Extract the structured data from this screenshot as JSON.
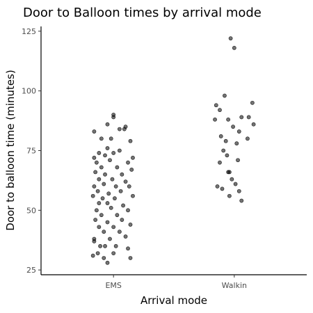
{
  "chart_data": {
    "type": "scatter",
    "title": "Door to Balloon times by arrival mode",
    "xlabel": "Arrival mode",
    "ylabel": "Door to balloon time (minutes)",
    "categories": [
      "EMS",
      "Walkin"
    ],
    "ylim": [
      23,
      127
    ],
    "yticks": [
      25,
      50,
      75,
      100,
      125
    ],
    "grid": false,
    "legend": "none",
    "point_color": "#000000",
    "series": [
      {
        "category": "EMS",
        "points": [
          {
            "x": 1.0,
            "y": 89
          },
          {
            "x": 1.0,
            "y": 90
          },
          {
            "x": 0.95,
            "y": 86
          },
          {
            "x": 1.1,
            "y": 85
          },
          {
            "x": 0.84,
            "y": 83
          },
          {
            "x": 1.05,
            "y": 84
          },
          {
            "x": 1.09,
            "y": 84
          },
          {
            "x": 0.9,
            "y": 80
          },
          {
            "x": 0.98,
            "y": 80
          },
          {
            "x": 1.14,
            "y": 79
          },
          {
            "x": 0.95,
            "y": 76
          },
          {
            "x": 0.88,
            "y": 74
          },
          {
            "x": 1.0,
            "y": 74
          },
          {
            "x": 1.05,
            "y": 75
          },
          {
            "x": 0.84,
            "y": 72
          },
          {
            "x": 0.93,
            "y": 73
          },
          {
            "x": 1.16,
            "y": 72
          },
          {
            "x": 0.86,
            "y": 70
          },
          {
            "x": 0.97,
            "y": 71
          },
          {
            "x": 1.12,
            "y": 70
          },
          {
            "x": 0.9,
            "y": 68
          },
          {
            "x": 1.03,
            "y": 68
          },
          {
            "x": 1.15,
            "y": 67
          },
          {
            "x": 0.85,
            "y": 66
          },
          {
            "x": 0.93,
            "y": 65
          },
          {
            "x": 1.07,
            "y": 65
          },
          {
            "x": 0.88,
            "y": 63
          },
          {
            "x": 0.99,
            "y": 63
          },
          {
            "x": 1.1,
            "y": 62
          },
          {
            "x": 0.84,
            "y": 60
          },
          {
            "x": 0.92,
            "y": 61
          },
          {
            "x": 1.02,
            "y": 60
          },
          {
            "x": 1.13,
            "y": 60
          },
          {
            "x": 0.87,
            "y": 58
          },
          {
            "x": 0.96,
            "y": 57
          },
          {
            "x": 1.06,
            "y": 58
          },
          {
            "x": 0.83,
            "y": 56
          },
          {
            "x": 0.91,
            "y": 55
          },
          {
            "x": 1.01,
            "y": 55
          },
          {
            "x": 1.16,
            "y": 56
          },
          {
            "x": 0.88,
            "y": 53
          },
          {
            "x": 0.95,
            "y": 53
          },
          {
            "x": 1.08,
            "y": 52
          },
          {
            "x": 0.86,
            "y": 50
          },
          {
            "x": 0.98,
            "y": 51
          },
          {
            "x": 1.12,
            "y": 50
          },
          {
            "x": 0.9,
            "y": 48
          },
          {
            "x": 1.03,
            "y": 48
          },
          {
            "x": 0.85,
            "y": 46
          },
          {
            "x": 0.95,
            "y": 45
          },
          {
            "x": 1.07,
            "y": 46
          },
          {
            "x": 0.88,
            "y": 43
          },
          {
            "x": 1.0,
            "y": 43
          },
          {
            "x": 1.14,
            "y": 44
          },
          {
            "x": 0.92,
            "y": 41
          },
          {
            "x": 1.05,
            "y": 41
          },
          {
            "x": 0.84,
            "y": 38
          },
          {
            "x": 0.97,
            "y": 38
          },
          {
            "x": 1.1,
            "y": 39
          },
          {
            "x": 0.84,
            "y": 37
          },
          {
            "x": 0.89,
            "y": 35
          },
          {
            "x": 0.93,
            "y": 35
          },
          {
            "x": 1.02,
            "y": 35
          },
          {
            "x": 1.12,
            "y": 34
          },
          {
            "x": 0.87,
            "y": 32
          },
          {
            "x": 1.0,
            "y": 32
          },
          {
            "x": 0.83,
            "y": 31
          },
          {
            "x": 0.92,
            "y": 30
          },
          {
            "x": 1.14,
            "y": 30
          },
          {
            "x": 0.95,
            "y": 28
          }
        ]
      },
      {
        "category": "Walkin",
        "points": [
          {
            "x": 1.97,
            "y": 122
          },
          {
            "x": 2.0,
            "y": 118
          },
          {
            "x": 1.92,
            "y": 98
          },
          {
            "x": 2.15,
            "y": 95
          },
          {
            "x": 1.85,
            "y": 94
          },
          {
            "x": 1.88,
            "y": 92
          },
          {
            "x": 2.06,
            "y": 89
          },
          {
            "x": 2.12,
            "y": 89
          },
          {
            "x": 1.84,
            "y": 88
          },
          {
            "x": 1.95,
            "y": 88
          },
          {
            "x": 2.16,
            "y": 86
          },
          {
            "x": 1.99,
            "y": 85
          },
          {
            "x": 2.04,
            "y": 83
          },
          {
            "x": 1.89,
            "y": 81
          },
          {
            "x": 2.11,
            "y": 80
          },
          {
            "x": 1.93,
            "y": 79
          },
          {
            "x": 2.02,
            "y": 78
          },
          {
            "x": 1.91,
            "y": 75
          },
          {
            "x": 1.94,
            "y": 73
          },
          {
            "x": 2.03,
            "y": 71
          },
          {
            "x": 1.88,
            "y": 70
          },
          {
            "x": 1.95,
            "y": 66
          },
          {
            "x": 1.96,
            "y": 66
          },
          {
            "x": 1.98,
            "y": 63
          },
          {
            "x": 2.01,
            "y": 61
          },
          {
            "x": 1.86,
            "y": 60
          },
          {
            "x": 1.9,
            "y": 59
          },
          {
            "x": 2.04,
            "y": 58
          },
          {
            "x": 1.96,
            "y": 56
          },
          {
            "x": 2.06,
            "y": 54
          }
        ]
      }
    ]
  }
}
